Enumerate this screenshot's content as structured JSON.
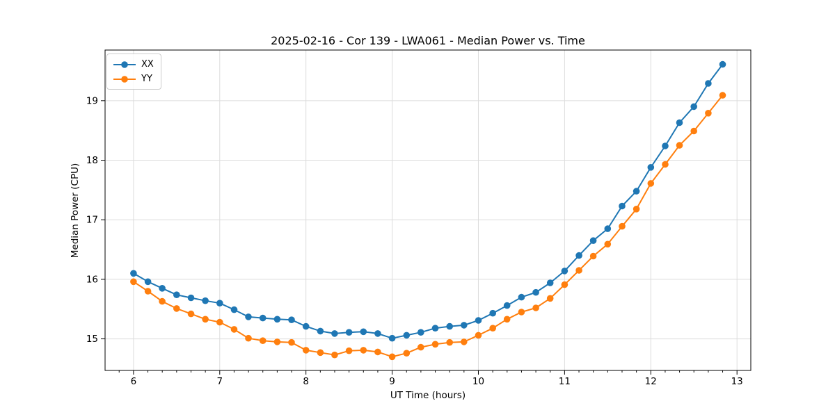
{
  "figure": {
    "background": "#ffffff",
    "grid_color": "#dcdcdc",
    "axis_color": "#000000"
  },
  "chart_data": {
    "type": "line",
    "title": "2025-02-16 - Cor 139 - LWA061 - Median Power vs. Time",
    "xlabel": "UT Time (hours)",
    "ylabel": "Median Power (CPU)",
    "xlim": [
      5.67,
      13.16
    ],
    "ylim": [
      14.47,
      19.85
    ],
    "x_major_ticks": [
      6,
      7,
      8,
      9,
      10,
      11,
      12,
      13
    ],
    "x_tick_labels": [
      "6",
      "7",
      "8",
      "9",
      "10",
      "11",
      "12",
      "13"
    ],
    "x_minor_tick_interval_hours": 0.1667,
    "y_major_ticks": [
      15,
      16,
      17,
      18,
      19
    ],
    "y_tick_labels": [
      "15",
      "16",
      "17",
      "18",
      "19"
    ],
    "grid": "major-both",
    "legend_position": "upper-left",
    "x": [
      6.0,
      6.167,
      6.333,
      6.5,
      6.667,
      6.833,
      7.0,
      7.167,
      7.333,
      7.5,
      7.667,
      7.833,
      8.0,
      8.167,
      8.333,
      8.5,
      8.667,
      8.833,
      9.0,
      9.167,
      9.333,
      9.5,
      9.667,
      9.833,
      10.0,
      10.167,
      10.333,
      10.5,
      10.667,
      10.833,
      11.0,
      11.167,
      11.333,
      11.5,
      11.667,
      11.833,
      12.0,
      12.167,
      12.333,
      12.5,
      12.667,
      12.833
    ],
    "series": [
      {
        "name": "XX",
        "color": "#1f77b4",
        "marker": "circle",
        "values": [
          16.1,
          15.96,
          15.85,
          15.74,
          15.69,
          15.64,
          15.6,
          15.49,
          15.37,
          15.35,
          15.33,
          15.32,
          15.21,
          15.13,
          15.09,
          15.11,
          15.12,
          15.09,
          15.01,
          15.06,
          15.11,
          15.18,
          15.21,
          15.23,
          15.31,
          15.43,
          15.56,
          15.7,
          15.78,
          15.94,
          16.14,
          16.4,
          16.65,
          16.85,
          17.23,
          17.48,
          17.88,
          18.24,
          18.63,
          18.9,
          19.29,
          19.61
        ]
      },
      {
        "name": "YY",
        "color": "#ff7f0e",
        "marker": "circle",
        "values": [
          15.96,
          15.8,
          15.63,
          15.51,
          15.42,
          15.33,
          15.28,
          15.16,
          15.01,
          14.97,
          14.95,
          14.94,
          14.81,
          14.77,
          14.73,
          14.8,
          14.81,
          14.78,
          14.7,
          14.76,
          14.86,
          14.91,
          14.94,
          14.95,
          15.06,
          15.18,
          15.33,
          15.45,
          15.52,
          15.68,
          15.91,
          16.15,
          16.39,
          16.59,
          16.89,
          17.18,
          17.61,
          17.93,
          18.25,
          18.49,
          18.79,
          19.09
        ]
      }
    ]
  }
}
